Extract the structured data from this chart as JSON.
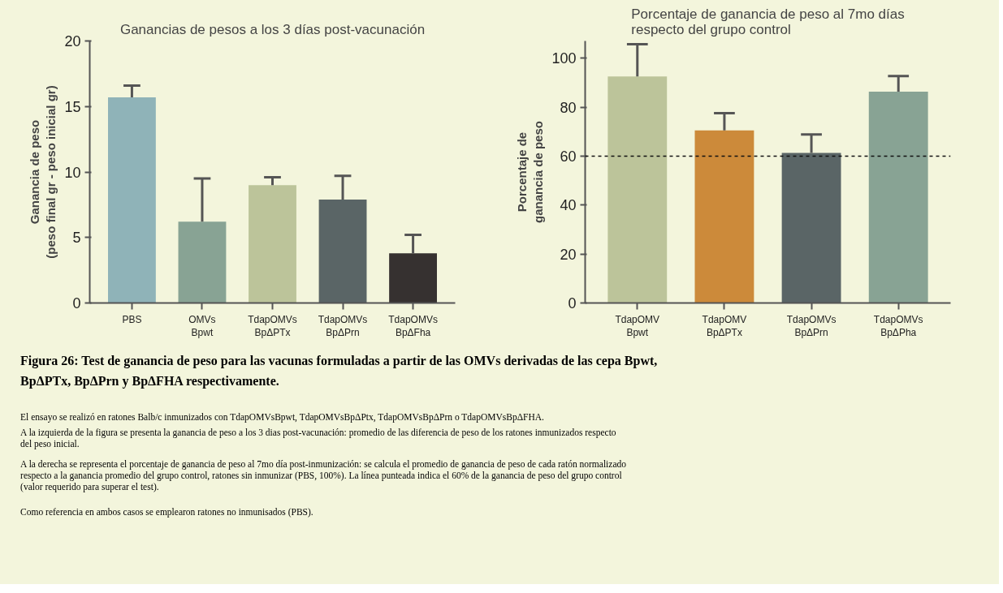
{
  "chart_data": [
    {
      "type": "bar",
      "title": "Ganancias de pesos a los 3 días post-vacunación",
      "ylabel": "Ganancia de peso\n(peso final gr - peso inicial gr)",
      "categories": [
        "PBS",
        "OMVs\nBpwt",
        "TdapOMVs\nBpΔPTx",
        "TdapOMVs\nBpΔPrn",
        "TdapOMVs\nBpΔFha"
      ],
      "values": [
        15.7,
        6.2,
        9.0,
        7.9,
        3.8
      ],
      "colors": [
        "#8fb3b8",
        "#88a394",
        "#bcc49a",
        "#5a6566",
        "#363130"
      ],
      "errors": [
        [
          15.7,
          16.6
        ],
        [
          6.2,
          9.5
        ],
        [
          9.0,
          9.6
        ],
        [
          7.9,
          9.7
        ],
        [
          3.8,
          5.2
        ]
      ],
      "ylim": [
        0,
        20
      ],
      "yticks": [
        0,
        5,
        10,
        15,
        20
      ]
    },
    {
      "type": "bar",
      "title": "Porcentaje de ganancia de peso al 7mo días\nrespecto del grupo control",
      "ylabel": "Porcentaje de\nganancia de peso",
      "categories": [
        "TdapOMV\nBpwt",
        "TdapOMV\nBpΔPTx",
        "TdapOMVs\nBpΔPrn",
        "TdapOMVs\nBpΔPha"
      ],
      "values": [
        92.5,
        70.5,
        61.3,
        86.3
      ],
      "colors": [
        "#bcc49a",
        "#cc8a3a",
        "#5a6566",
        "#88a394"
      ],
      "errors": [
        [
          92.5,
          105.7
        ],
        [
          70.5,
          77.5
        ],
        [
          61.3,
          68.8
        ],
        [
          86.3,
          92.7
        ]
      ],
      "ylim": [
        0,
        107
      ],
      "yticks": [
        0,
        20,
        40,
        60,
        80,
        100
      ],
      "ref_lines": [
        {
          "axis": "y",
          "value": 60,
          "color": "#111111",
          "line_style": "dashed"
        }
      ]
    },
    {
      "type": "other",
      "title": "Figura 26: Test de ganancia de peso para las vacunas formuladas a partir de las OMVs derivadas de las cepa Bpwt,\nBpΔPTx, BpΔPrn y BpΔFHA respectivamente.",
      "annotations": [
        "El ensayo se realizó en ratones Balb/c inmunizados con TdapOMVsBpwt, TdapOMVsBpΔPtx, TdapOMVsBpΔPrn  o TdapOMVsBpΔFHA.",
        "A la izquierda de la figura se presenta la ganancia de peso a los 3 dias post-vacunación: promedio de las diferencia de peso de los ratones inmunizados respecto\ndel peso inicial.",
        "A la derecha se representa el porcentaje de ganancia de peso al 7mo día post-inmunización: se calcula el promedio de ganancia de peso de cada ratón normalizado\nrespecto a la ganancia promedio del grupo control, ratones sin inmunizar (PBS, 100%). La línea punteada indica el 60%  de la ganancia de peso del grupo control\n(valor requerido para superar el test).",
        "Como referencia en ambos casos se emplearon ratones no inmunisados (PBS)."
      ]
    }
  ]
}
